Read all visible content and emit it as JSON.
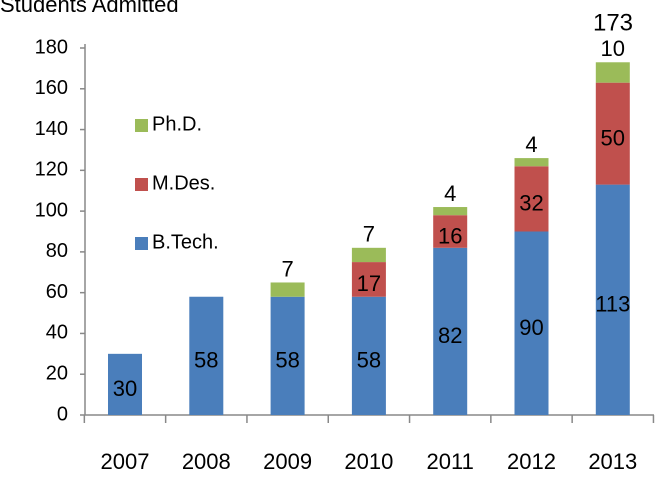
{
  "chart_data": {
    "type": "stacked_bar",
    "title": "Students Admitted",
    "categories": [
      "2007",
      "2008",
      "2009",
      "2010",
      "2011",
      "2012",
      "2013"
    ],
    "series": [
      {
        "name": "B.Tech.",
        "color": "#4a7ebb",
        "values": [
          30,
          58,
          58,
          58,
          82,
          90,
          113
        ]
      },
      {
        "name": "M.Des.",
        "color": "#c0504d",
        "values": [
          null,
          null,
          null,
          17,
          16,
          32,
          50
        ]
      },
      {
        "name": "Ph.D.",
        "color": "#9bbb59",
        "values": [
          null,
          null,
          7,
          7,
          4,
          4,
          10
        ]
      }
    ],
    "annotations": [
      "173"
    ],
    "ylim": [
      0,
      180
    ],
    "yticks": [
      0,
      20,
      40,
      60,
      80,
      100,
      120,
      140,
      160,
      180
    ],
    "grid": false
  }
}
